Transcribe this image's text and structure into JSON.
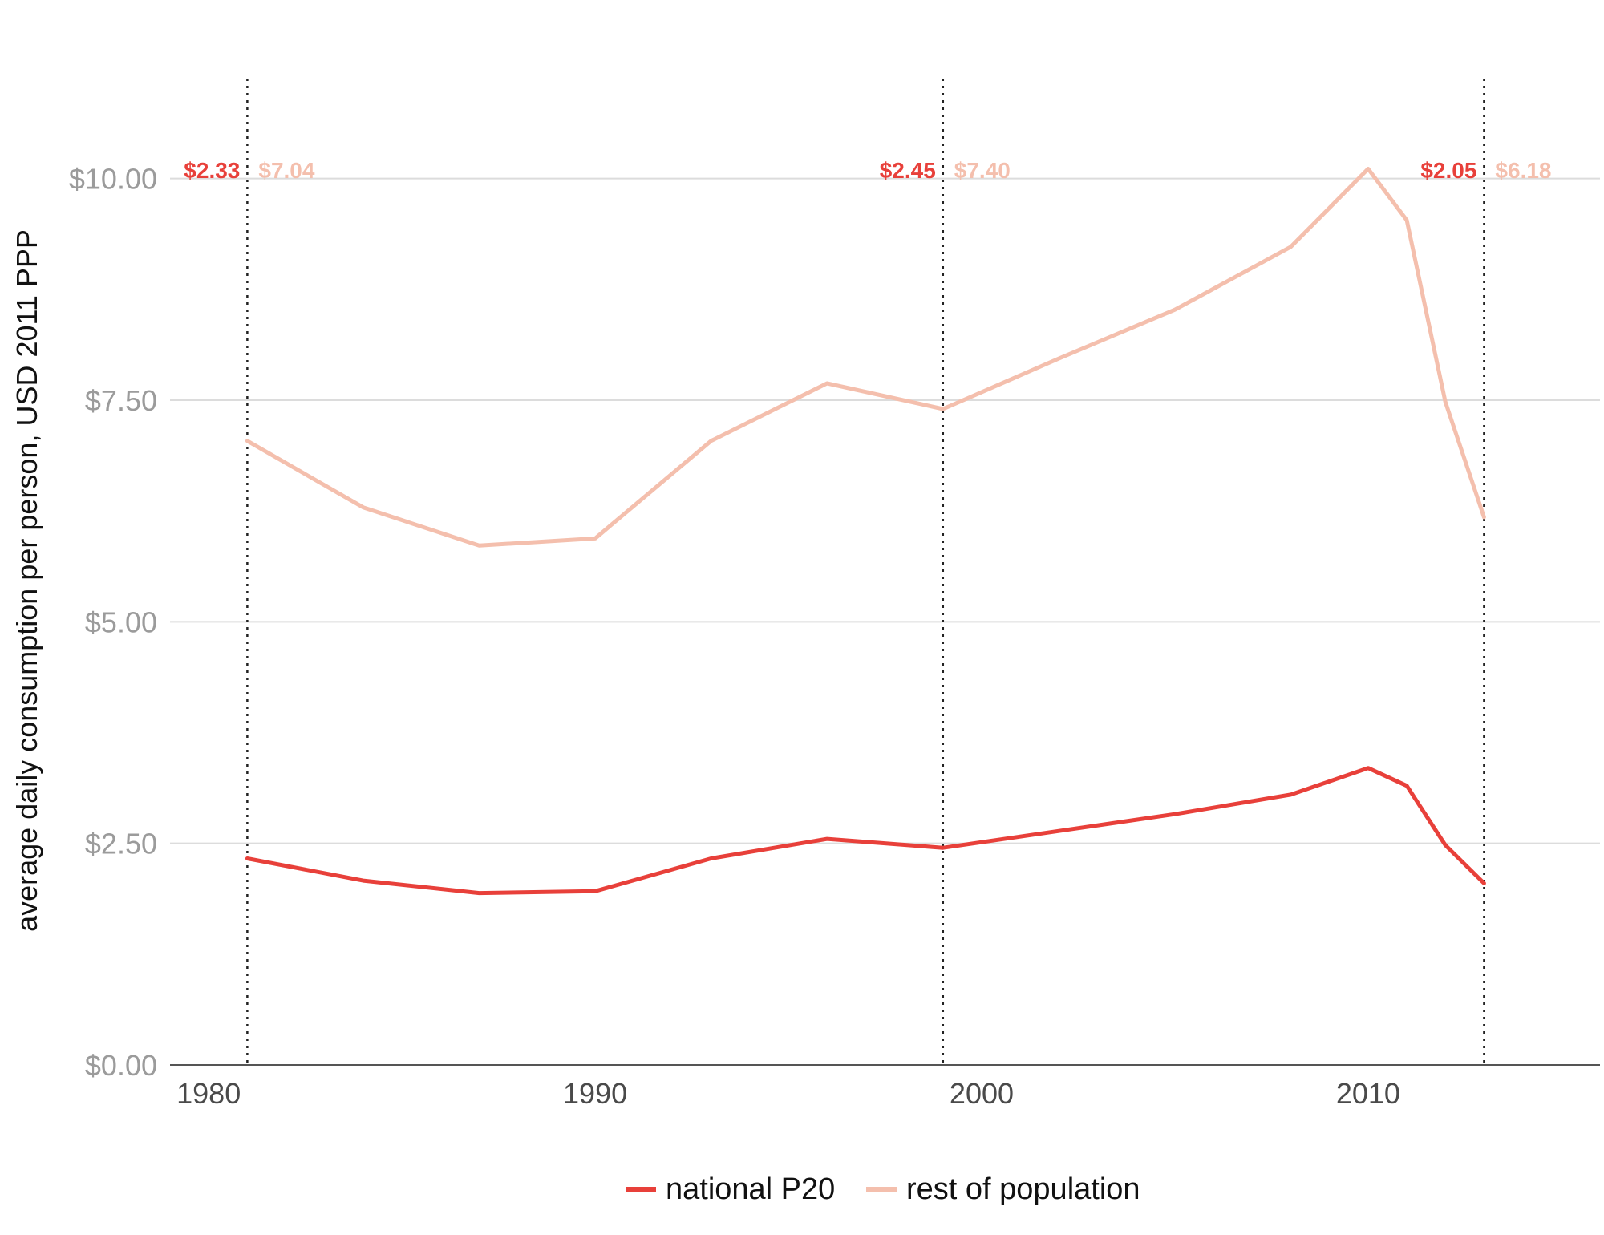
{
  "chart_data": {
    "type": "line",
    "title": "",
    "xlabel": "",
    "ylabel": "average daily consumption per person, USD 2011 PPP",
    "xlim": [
      1979,
      2016
    ],
    "ylim": [
      0,
      11.2
    ],
    "x_ticks": [
      1980,
      1990,
      2000,
      2010
    ],
    "x_tick_labels": [
      "1980",
      "1990",
      "2000",
      "2010"
    ],
    "y_ticks": [
      0,
      2.5,
      5,
      7.5,
      10
    ],
    "y_tick_labels": [
      "$0.00",
      "$2.50",
      "$5.00",
      "$7.50",
      "$10.00"
    ],
    "grid": "horizontal",
    "legend_position": "bottom",
    "series": [
      {
        "name": "national P20",
        "color": "#e8403a",
        "x": [
          1981,
          1984,
          1987,
          1990,
          1993,
          1996,
          1999,
          2002,
          2005,
          2008,
          2010,
          2011,
          2012,
          2013
        ],
        "values": [
          2.33,
          2.08,
          1.94,
          1.96,
          2.33,
          2.55,
          2.45,
          2.64,
          2.83,
          3.05,
          3.35,
          3.15,
          2.48,
          2.05
        ]
      },
      {
        "name": "rest of population",
        "color": "#f4bfad",
        "x": [
          1981,
          1984,
          1987,
          1990,
          1993,
          1996,
          1999,
          2002,
          2005,
          2008,
          2010,
          2011,
          2012,
          2013
        ],
        "values": [
          7.04,
          6.29,
          5.86,
          5.94,
          7.04,
          7.69,
          7.4,
          7.97,
          8.52,
          9.23,
          10.11,
          9.53,
          7.48,
          6.18
        ]
      }
    ],
    "reference_lines": [
      {
        "x": 1981,
        "p20_label": "$2.33",
        "rest_label": "$7.04"
      },
      {
        "x": 1999,
        "p20_label": "$2.45",
        "rest_label": "$7.40"
      },
      {
        "x": 2013,
        "p20_label": "$2.05",
        "rest_label": "$6.18"
      }
    ]
  }
}
